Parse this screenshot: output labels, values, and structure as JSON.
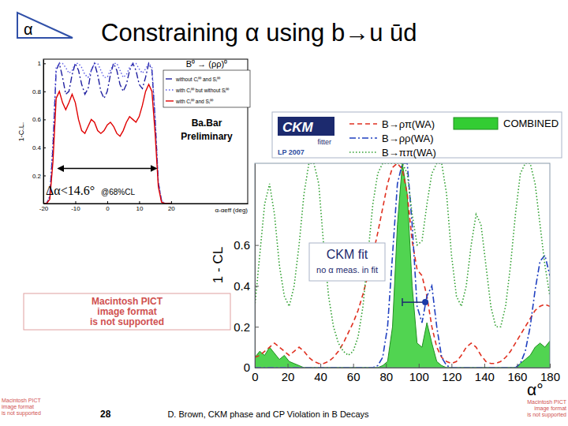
{
  "slide": {
    "icon": "α",
    "title": "Constraining α using b→u ūd",
    "page_number": "28",
    "footer": "D. Brown, CKM phase and CP Violation in B Decays",
    "placeholder": [
      "Macintosh PICT",
      "image format",
      "is not supported"
    ]
  },
  "chart_data": [
    {
      "type": "line",
      "title": "B⁰ → (ρρ)⁰",
      "x_label": "α-αeff (deg)",
      "y_label": "1-C.L.",
      "x": [
        -20,
        -19,
        -18,
        -17,
        -16,
        -15,
        -14,
        -13,
        -12,
        -11,
        -10,
        -9,
        -8,
        -7,
        -6,
        -5,
        -4,
        -3,
        -2,
        -1,
        0,
        1,
        2,
        3,
        4,
        5,
        6,
        7,
        8,
        9,
        10,
        11,
        12,
        13,
        14,
        15,
        16,
        17,
        18,
        19,
        20
      ],
      "series": [
        {
          "name": "without Cₗ⁰⁰ and Sₗ⁰⁰",
          "color": "#2020a0",
          "line_style": "dashdot",
          "values": [
            0,
            0,
            0.05,
            0.4,
            0.95,
            1,
            0.9,
            0.78,
            0.8,
            0.92,
            1,
            0.95,
            0.85,
            0.78,
            0.82,
            0.95,
            1,
            0.92,
            0.8,
            0.75,
            0.8,
            0.92,
            1,
            0.95,
            0.85,
            0.8,
            0.85,
            0.95,
            1,
            0.95,
            0.85,
            0.82,
            0.9,
            1,
            0.95,
            0.6,
            0.15,
            0.02,
            0,
            0,
            0
          ]
        },
        {
          "name": "with Cₗ⁰⁰ but without Sₗ⁰⁰",
          "color": "#5a5ae6",
          "line_style": "dotted",
          "values": [
            0,
            0,
            0.05,
            0.45,
            0.97,
            1,
            1,
            0.97,
            0.93,
            0.95,
            1,
            1,
            0.97,
            0.92,
            0.9,
            0.95,
            1,
            1,
            0.95,
            0.9,
            0.9,
            0.95,
            1,
            1,
            0.95,
            0.9,
            0.92,
            0.97,
            1,
            1,
            0.96,
            0.93,
            0.96,
            1,
            0.97,
            0.62,
            0.16,
            0.02,
            0,
            0,
            0
          ]
        },
        {
          "name": "with Cₗ⁰⁰ and Sₗ⁰⁰",
          "color": "#e00000",
          "line_style": "solid",
          "values": [
            0,
            0,
            0.03,
            0.3,
            0.75,
            0.8,
            0.72,
            0.67,
            0.72,
            0.78,
            0.72,
            0.6,
            0.52,
            0.5,
            0.55,
            0.6,
            0.58,
            0.52,
            0.5,
            0.52,
            0.56,
            0.58,
            0.55,
            0.5,
            0.48,
            0.52,
            0.58,
            0.62,
            0.6,
            0.58,
            0.62,
            0.7,
            0.8,
            0.85,
            0.8,
            0.5,
            0.12,
            0.01,
            0,
            0,
            0
          ]
        }
      ],
      "xlim": [
        -20,
        44
      ],
      "ylim": [
        0,
        1.03
      ],
      "xticks": [
        -20,
        -10,
        0,
        10,
        20
      ],
      "yticks": [
        0.2,
        0.4,
        0.6,
        0.8,
        1
      ],
      "legend": "upper right",
      "label": [
        "Ba.Bar",
        "Preliminary"
      ],
      "note": "Δα<14.6°",
      "note_cl": "@68%CL",
      "interval": {
        "x": [
          -14.6,
          14.6
        ],
        "y": 0.25
      }
    },
    {
      "type": "line",
      "x_label": "α°",
      "y_label": "1 - CL",
      "logo": [
        "CKM",
        "fitter",
        "LP 2007"
      ],
      "x": [
        0,
        3,
        6,
        9,
        12,
        15,
        18,
        21,
        24,
        27,
        30,
        33,
        36,
        39,
        42,
        45,
        48,
        51,
        54,
        57,
        60,
        63,
        66,
        69,
        72,
        75,
        78,
        81,
        84,
        87,
        90,
        93,
        96,
        99,
        102,
        105,
        108,
        111,
        114,
        117,
        120,
        123,
        126,
        129,
        132,
        135,
        138,
        141,
        144,
        147,
        150,
        153,
        156,
        159,
        162,
        165,
        168,
        171,
        174,
        177,
        180
      ],
      "series": [
        {
          "name": "B→ρπ(WA)",
          "color": "#e03020",
          "line_style": "dashed",
          "values": [
            0.05,
            0.06,
            0.08,
            0.1,
            0.12,
            0.1,
            0.08,
            0.06,
            0.08,
            0.1,
            0.08,
            0.05,
            0.03,
            0.02,
            0.02,
            0.03,
            0.05,
            0.08,
            0.12,
            0.17,
            0.22,
            0.28,
            0.36,
            0.45,
            0.55,
            0.66,
            0.78,
            0.9,
            0.98,
            1,
            0.97,
            0.85,
            0.62,
            0.48,
            0.45,
            0.35,
            0.2,
            0.1,
            0.05,
            0.03,
            0.02,
            0.03,
            0.06,
            0.1,
            0.12,
            0.1,
            0.06,
            0.03,
            0.02,
            0.02,
            0.03,
            0.05,
            0.08,
            0.12,
            0.16,
            0.2,
            0.24,
            0.28,
            0.3,
            0.31,
            0.3
          ]
        },
        {
          "name": "B→ρρ(WA)",
          "color": "#2040c0",
          "line_style": "dashdot",
          "values": [
            0,
            0,
            0,
            0,
            0,
            0,
            0,
            0,
            0,
            0,
            0,
            0,
            0,
            0,
            0,
            0,
            0,
            0,
            0,
            0,
            0,
            0,
            0,
            0,
            0,
            0.01,
            0.05,
            0.2,
            0.55,
            0.9,
            1,
            1,
            0.7,
            0.3,
            0.22,
            0.35,
            0.4,
            0.2,
            0.05,
            0.01,
            0,
            0,
            0,
            0,
            0,
            0,
            0,
            0,
            0,
            0,
            0,
            0,
            0,
            0,
            0.02,
            0.08,
            0.2,
            0.38,
            0.52,
            0.55,
            0.45
          ]
        },
        {
          "name": "B→ππ(WA)",
          "color": "#30a030",
          "line_style": "dotted",
          "values": [
            0.3,
            0.55,
            0.8,
            0.9,
            0.75,
            0.5,
            0.35,
            0.3,
            0.4,
            0.6,
            0.85,
            1,
            1,
            0.9,
            0.6,
            0.35,
            0.2,
            0.12,
            0.08,
            0.06,
            0.08,
            0.15,
            0.3,
            0.55,
            0.8,
            0.95,
            1,
            1,
            1,
            1,
            1,
            0.95,
            0.75,
            0.6,
            0.62,
            0.8,
            0.95,
            1,
            1,
            0.85,
            0.55,
            0.35,
            0.3,
            0.4,
            0.6,
            0.75,
            0.7,
            0.5,
            0.3,
            0.2,
            0.2,
            0.3,
            0.5,
            0.75,
            0.95,
            1,
            1,
            0.9,
            0.7,
            0.5,
            0.35
          ]
        },
        {
          "name": "COMBINED",
          "color": "#33cc33",
          "type": "area",
          "values": [
            0.05,
            0.08,
            0.06,
            0.1,
            0.07,
            0.04,
            0.06,
            0.03,
            0.02,
            0.01,
            0,
            0,
            0,
            0,
            0,
            0,
            0,
            0,
            0,
            0,
            0,
            0,
            0,
            0,
            0,
            0,
            0.01,
            0.03,
            0.2,
            0.7,
            1,
            0.85,
            0.4,
            0.12,
            0.1,
            0.22,
            0.12,
            0.03,
            0.01,
            0,
            0,
            0,
            0,
            0,
            0,
            0,
            0,
            0,
            0,
            0,
            0,
            0,
            0,
            0,
            0.02,
            0.04,
            0.06,
            0.1,
            0.12,
            0.1,
            0.13
          ]
        }
      ],
      "xlim": [
        0,
        180
      ],
      "ylim": [
        0,
        1
      ],
      "xticks": [
        0,
        20,
        40,
        60,
        80,
        100,
        120,
        140,
        160,
        180
      ],
      "yticks": [
        0,
        0.2,
        0.4,
        0.6
      ],
      "legend": "top",
      "ckm_fit": {
        "label": "CKM fit",
        "sublabel": "no α meas. in fit",
        "x": 104,
        "xerr_minus": 14,
        "y": 0.32
      }
    }
  ]
}
